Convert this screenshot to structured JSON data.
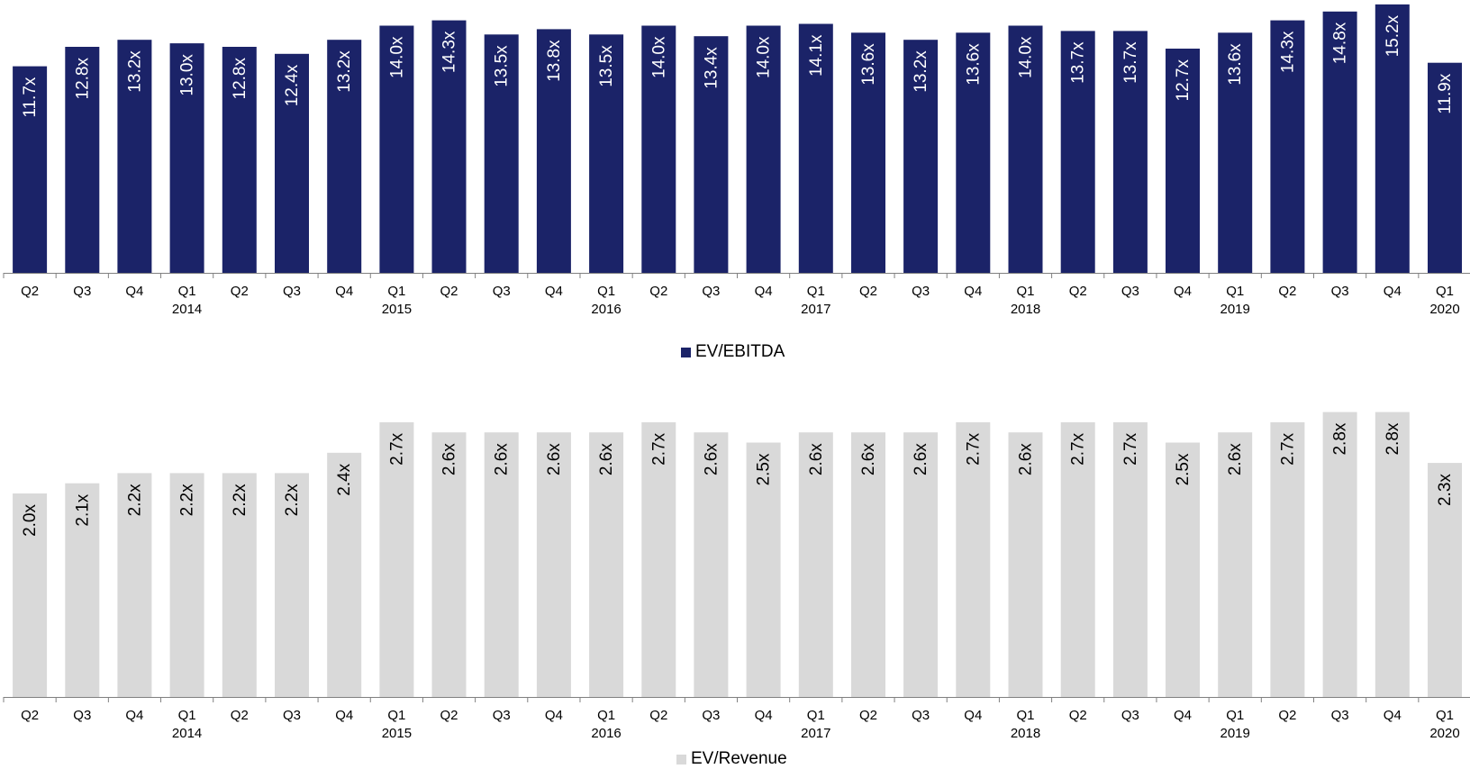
{
  "chart_data": [
    {
      "type": "bar",
      "categories": [
        [
          "Q2",
          ""
        ],
        [
          "Q3",
          ""
        ],
        [
          "Q4",
          ""
        ],
        [
          "Q1",
          "2014"
        ],
        [
          "Q2",
          ""
        ],
        [
          "Q3",
          ""
        ],
        [
          "Q4",
          ""
        ],
        [
          "Q1",
          "2015"
        ],
        [
          "Q2",
          ""
        ],
        [
          "Q3",
          ""
        ],
        [
          "Q4",
          ""
        ],
        [
          "Q1",
          "2016"
        ],
        [
          "Q2",
          ""
        ],
        [
          "Q3",
          ""
        ],
        [
          "Q4",
          ""
        ],
        [
          "Q1",
          "2017"
        ],
        [
          "Q2",
          ""
        ],
        [
          "Q3",
          ""
        ],
        [
          "Q4",
          ""
        ],
        [
          "Q1",
          "2018"
        ],
        [
          "Q2",
          ""
        ],
        [
          "Q3",
          ""
        ],
        [
          "Q4",
          ""
        ],
        [
          "Q1",
          "2019"
        ],
        [
          "Q2",
          ""
        ],
        [
          "Q3",
          ""
        ],
        [
          "Q4",
          ""
        ],
        [
          "Q1",
          "2020"
        ]
      ],
      "series": [
        {
          "name": "EV/EBITDA",
          "values": [
            11.7,
            12.8,
            13.2,
            13.0,
            12.8,
            12.4,
            13.2,
            14.0,
            14.3,
            13.5,
            13.8,
            13.5,
            14.0,
            13.4,
            14.0,
            14.1,
            13.6,
            13.2,
            13.6,
            14.0,
            13.7,
            13.7,
            12.7,
            13.6,
            14.3,
            14.8,
            15.2,
            11.9
          ],
          "labels": [
            "11.7x",
            "12.8x",
            "13.2x",
            "13.0x",
            "12.8x",
            "12.4x",
            "13.2x",
            "14.0x",
            "14.3x",
            "13.5x",
            "13.8x",
            "13.5x",
            "14.0x",
            "13.4x",
            "14.0x",
            "14.1x",
            "13.6x",
            "13.2x",
            "13.6x",
            "14.0x",
            "13.7x",
            "13.7x",
            "12.7x",
            "13.6x",
            "14.3x",
            "14.8x",
            "15.2x",
            "11.9x"
          ],
          "color": "#1b2368",
          "label_color": "#ffffff"
        }
      ],
      "ylim": [
        0,
        15.35
      ],
      "legend": "bottom-center",
      "grid": false
    },
    {
      "type": "bar",
      "categories": [
        [
          "Q2",
          ""
        ],
        [
          "Q3",
          ""
        ],
        [
          "Q4",
          ""
        ],
        [
          "Q1",
          "2014"
        ],
        [
          "Q2",
          ""
        ],
        [
          "Q3",
          ""
        ],
        [
          "Q4",
          ""
        ],
        [
          "Q1",
          "2015"
        ],
        [
          "Q2",
          ""
        ],
        [
          "Q3",
          ""
        ],
        [
          "Q4",
          ""
        ],
        [
          "Q1",
          "2016"
        ],
        [
          "Q2",
          ""
        ],
        [
          "Q3",
          ""
        ],
        [
          "Q4",
          ""
        ],
        [
          "Q1",
          "2017"
        ],
        [
          "Q2",
          ""
        ],
        [
          "Q3",
          ""
        ],
        [
          "Q4",
          ""
        ],
        [
          "Q1",
          "2018"
        ],
        [
          "Q2",
          ""
        ],
        [
          "Q3",
          ""
        ],
        [
          "Q4",
          ""
        ],
        [
          "Q1",
          "2019"
        ],
        [
          "Q2",
          ""
        ],
        [
          "Q3",
          ""
        ],
        [
          "Q4",
          ""
        ],
        [
          "Q1",
          "2020"
        ]
      ],
      "series": [
        {
          "name": "EV/Revenue",
          "values": [
            2.0,
            2.1,
            2.2,
            2.2,
            2.2,
            2.2,
            2.4,
            2.7,
            2.6,
            2.6,
            2.6,
            2.6,
            2.7,
            2.6,
            2.5,
            2.6,
            2.6,
            2.6,
            2.7,
            2.6,
            2.7,
            2.7,
            2.5,
            2.6,
            2.7,
            2.8,
            2.8,
            2.3
          ],
          "labels": [
            "2.0x",
            "2.1x",
            "2.2x",
            "2.2x",
            "2.2x",
            "2.2x",
            "2.4x",
            "2.7x",
            "2.6x",
            "2.6x",
            "2.6x",
            "2.6x",
            "2.7x",
            "2.6x",
            "2.5x",
            "2.6x",
            "2.6x",
            "2.6x",
            "2.7x",
            "2.6x",
            "2.7x",
            "2.7x",
            "2.5x",
            "2.6x",
            "2.7x",
            "2.8x",
            "2.8x",
            "2.3x"
          ],
          "color": "#d9d9d9",
          "label_color": "#000000"
        }
      ],
      "ylim": [
        0,
        2.85
      ],
      "legend": "bottom-center",
      "grid": false
    }
  ]
}
